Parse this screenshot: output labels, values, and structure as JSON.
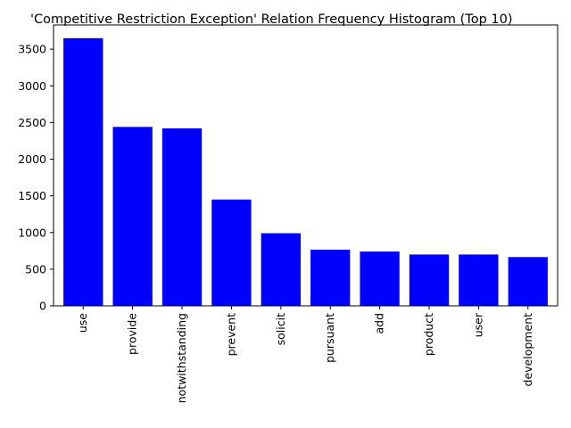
{
  "chart_data": {
    "type": "bar",
    "title": "'Competitive Restriction Exception' Relation Frequency Histogram (Top 10)",
    "xlabel": "",
    "ylabel": "",
    "categories": [
      "use",
      "provide",
      "notwithstanding",
      "prevent",
      "solicit",
      "pursuant",
      "add",
      "product",
      "user",
      "development"
    ],
    "values": [
      3650,
      2440,
      2420,
      1450,
      990,
      765,
      740,
      700,
      700,
      665
    ],
    "ylim": [
      0,
      3830
    ],
    "yticks": [
      0,
      500,
      1000,
      1500,
      2000,
      2500,
      3000,
      3500
    ],
    "bar_color": "#0000ff",
    "grid": false,
    "legend": "none"
  }
}
